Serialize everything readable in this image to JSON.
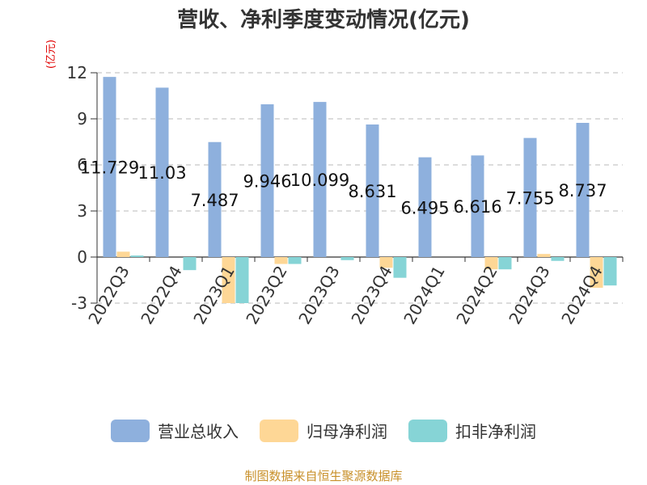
{
  "header": {
    "title": "营收、净利季度变动情况(亿元)"
  },
  "unit_label": "(亿元)",
  "source": "制图数据来自恒生聚源数据库",
  "chart_data": {
    "type": "bar",
    "title": "营收、净利季度变动情况(亿元)",
    "ylabel": "(亿元)",
    "xlabel": "",
    "ylim": [
      -3,
      12
    ],
    "yticks": [
      -3,
      0,
      3,
      6,
      9,
      12
    ],
    "grid": true,
    "legend_position": "bottom",
    "categories": [
      "2022Q3",
      "2022Q4",
      "2023Q1",
      "2023Q2",
      "2023Q3",
      "2023Q4",
      "2024Q1",
      "2024Q2",
      "2024Q3",
      "2024Q4"
    ],
    "series": [
      {
        "name": "营业总收入",
        "color": "#8eb0dd",
        "values": [
          11.729,
          11.03,
          7.487,
          9.946,
          10.099,
          8.631,
          6.495,
          6.616,
          7.755,
          8.737
        ],
        "labels": [
          "11.729",
          "11.03",
          "7.487",
          "9.946",
          "10.099",
          "8.631",
          "6.495",
          "6.616",
          "7.755",
          "8.737"
        ]
      },
      {
        "name": "归母净利润",
        "color": "#fed796",
        "values": [
          0.35,
          0.0,
          -3.0,
          -0.45,
          0.0,
          -0.7,
          0.0,
          -0.8,
          0.2,
          -2.0
        ]
      },
      {
        "name": "扣非净利润",
        "color": "#86d4d6",
        "values": [
          0.1,
          -0.85,
          -3.0,
          -0.45,
          -0.2,
          -1.35,
          0.0,
          -0.8,
          -0.25,
          -1.85
        ]
      }
    ]
  }
}
